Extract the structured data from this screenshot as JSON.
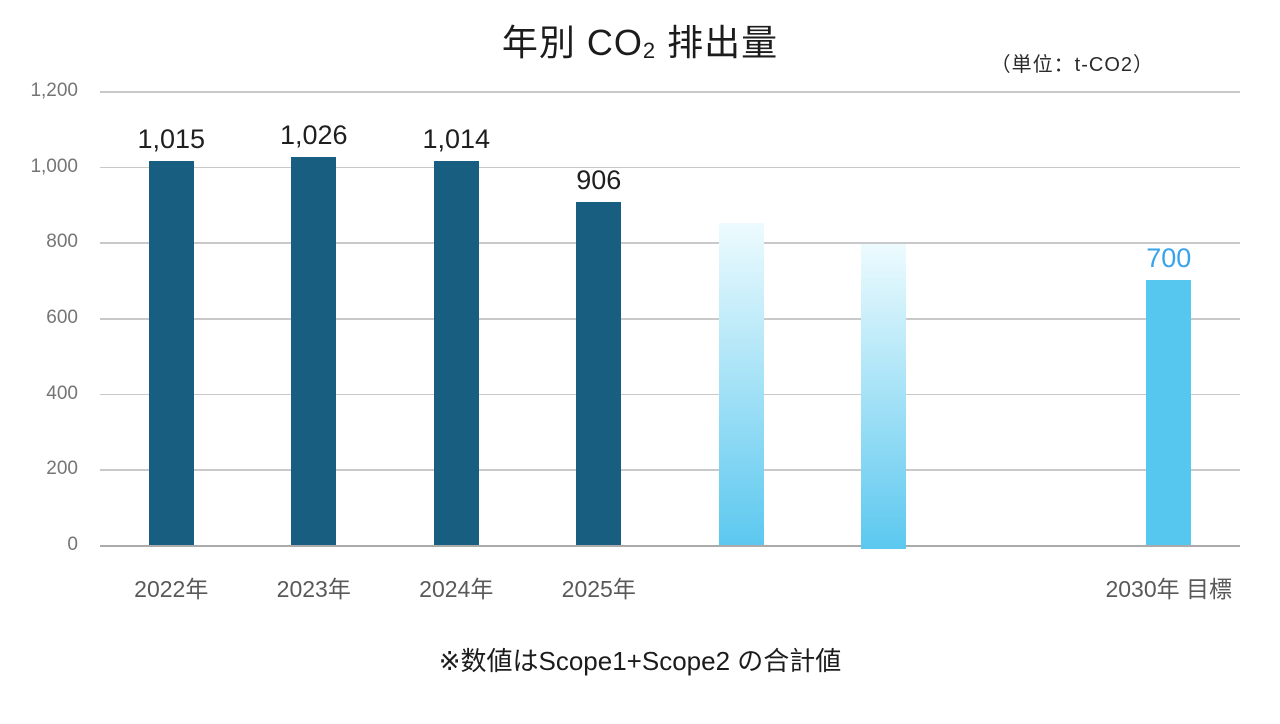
{
  "title": {
    "prefix": "年別 CO",
    "subscript": "2",
    "suffix": "排出量"
  },
  "unit_label": "（単位：t-CO2）",
  "footnote": "※数値はScope1+Scope2 の合計値",
  "colors": {
    "bar_dark": "#185E80",
    "bar_light": "#56C8F0",
    "bar_fade_top": "#EDFBFE",
    "bar_fade_bottom": "#5CC8EF",
    "target_value_label": "#38A3EC",
    "gridline": "#C9C9C9",
    "axis_line": "#ABABAB",
    "tick_text": "#757575",
    "category_text": "#595959",
    "value_text": "#1F1F1F"
  },
  "chart_data": {
    "type": "bar",
    "title": "年別 CO2 排出量",
    "unit": "t-CO2",
    "xlabel": "",
    "ylabel": "",
    "ylim": [
      0,
      1200
    ],
    "grid": "horizontal",
    "legend": "none",
    "slots": 8,
    "yticks": [
      {
        "value": 0,
        "label": "0"
      },
      {
        "value": 200,
        "label": "200"
      },
      {
        "value": 400,
        "label": "400"
      },
      {
        "value": 600,
        "label": "600"
      },
      {
        "value": 800,
        "label": "800"
      },
      {
        "value": 1000,
        "label": "1,000"
      },
      {
        "value": 1200,
        "label": "1,200"
      }
    ],
    "bars": [
      {
        "slot": 0,
        "category": "2022年",
        "value": 1015,
        "value_label": "1,015",
        "style": "dark"
      },
      {
        "slot": 1,
        "category": "2023年",
        "value": 1026,
        "value_label": "1,026",
        "style": "dark"
      },
      {
        "slot": 2,
        "category": "2024年",
        "value": 1014,
        "value_label": "1,014",
        "style": "dark"
      },
      {
        "slot": 3,
        "category": "2025年",
        "value": 906,
        "value_label": "906",
        "style": "dark"
      },
      {
        "slot": 4,
        "category": "",
        "value": 850,
        "value_label": "",
        "style": "fade"
      },
      {
        "slot": 5,
        "category": "",
        "value": 795,
        "value_label": "",
        "style": "fade",
        "extends_below_axis": true
      },
      {
        "slot": 7,
        "category": "2030年 目標",
        "value": 700,
        "value_label": "700",
        "style": "light"
      }
    ]
  }
}
